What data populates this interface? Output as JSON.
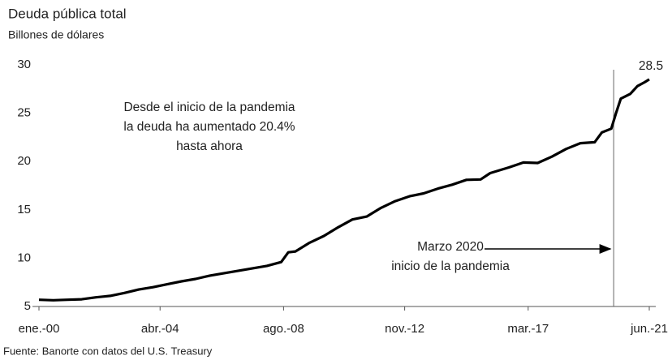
{
  "chart_data": {
    "type": "line",
    "title": "Deuda pública total",
    "subtitle": "Billones de dólares",
    "source": "Fuente: Banorte con datos del U.S. Treasury",
    "annotation": [
      "Desde el inicio de la pandemia",
      "la deuda ha aumentado 20.4%",
      "hasta ahora"
    ],
    "event_label": [
      "Marzo 2020",
      "inicio de la pandemia"
    ],
    "event_x": "2020-03",
    "x": [
      "2000-01",
      "2000-07",
      "2001-01",
      "2001-07",
      "2002-01",
      "2002-07",
      "2003-01",
      "2003-07",
      "2004-01",
      "2004-07",
      "2005-01",
      "2005-07",
      "2006-01",
      "2006-07",
      "2007-01",
      "2007-07",
      "2008-01",
      "2008-07",
      "2008-10",
      "2009-01",
      "2009-07",
      "2010-01",
      "2010-07",
      "2011-01",
      "2011-07",
      "2012-01",
      "2012-07",
      "2013-01",
      "2013-07",
      "2014-01",
      "2014-07",
      "2015-01",
      "2015-07",
      "2015-11",
      "2016-07",
      "2017-01",
      "2017-07",
      "2018-01",
      "2018-07",
      "2019-01",
      "2019-07",
      "2019-10",
      "2020-02",
      "2020-04",
      "2020-06",
      "2020-10",
      "2021-01",
      "2021-04",
      "2021-06"
    ],
    "series": [
      {
        "name": "Deuda pública total",
        "color": "#000000",
        "values": [
          5.7,
          5.65,
          5.7,
          5.75,
          5.95,
          6.1,
          6.4,
          6.75,
          7.0,
          7.3,
          7.6,
          7.85,
          8.2,
          8.45,
          8.7,
          8.95,
          9.2,
          9.6,
          10.6,
          10.7,
          11.6,
          12.3,
          13.2,
          14.0,
          14.3,
          15.2,
          15.9,
          16.4,
          16.7,
          17.2,
          17.6,
          18.1,
          18.15,
          18.8,
          19.4,
          19.9,
          19.85,
          20.5,
          21.3,
          21.9,
          22.0,
          23.0,
          23.4,
          25.0,
          26.5,
          27.0,
          27.8,
          28.2,
          28.5
        ]
      }
    ],
    "xlim": [
      "2000-01",
      "2021-06"
    ],
    "xticks": [
      {
        "value": "2000-01",
        "label": "ene.-00"
      },
      {
        "value": "2004-04",
        "label": "abr.-04"
      },
      {
        "value": "2008-08",
        "label": "ago.-08"
      },
      {
        "value": "2012-11",
        "label": "nov.-12"
      },
      {
        "value": "2017-03",
        "label": "mar.-17"
      },
      {
        "value": "2021-06",
        "label": "jun.-21"
      }
    ],
    "ylim": [
      5,
      30
    ],
    "yticks": [
      5,
      10,
      15,
      20,
      25,
      30
    ],
    "grid": false
  }
}
